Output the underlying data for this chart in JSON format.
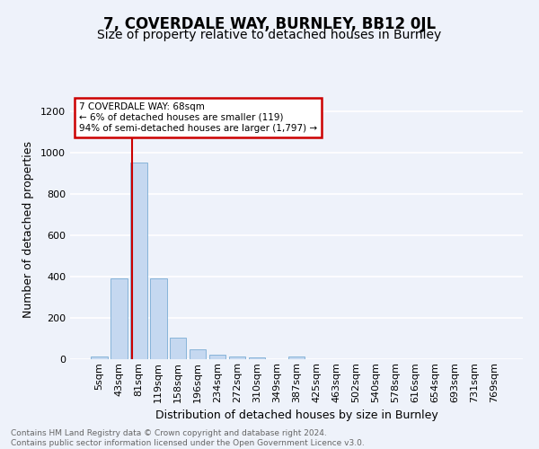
{
  "title": "7, COVERDALE WAY, BURNLEY, BB12 0JL",
  "subtitle": "Size of property relative to detached houses in Burnley",
  "xlabel": "Distribution of detached houses by size in Burnley",
  "ylabel": "Number of detached properties",
  "categories": [
    "5sqm",
    "43sqm",
    "81sqm",
    "119sqm",
    "158sqm",
    "196sqm",
    "234sqm",
    "272sqm",
    "310sqm",
    "349sqm",
    "387sqm",
    "425sqm",
    "463sqm",
    "502sqm",
    "540sqm",
    "578sqm",
    "616sqm",
    "654sqm",
    "693sqm",
    "731sqm",
    "769sqm"
  ],
  "values": [
    12,
    390,
    950,
    390,
    105,
    48,
    20,
    13,
    10,
    0,
    13,
    0,
    0,
    0,
    0,
    0,
    0,
    0,
    0,
    0,
    0
  ],
  "bar_color": "#c5d8f0",
  "bar_edge_color": "#7aadd4",
  "vline_x": 1.68,
  "vline_color": "#cc0000",
  "annotation_text": "7 COVERDALE WAY: 68sqm\n← 6% of detached houses are smaller (119)\n94% of semi-detached houses are larger (1,797) →",
  "annotation_box_color": "#ffffff",
  "annotation_box_edge": "#cc0000",
  "footer_text": "Contains HM Land Registry data © Crown copyright and database right 2024.\nContains public sector information licensed under the Open Government Licence v3.0.",
  "ylim": [
    0,
    1260
  ],
  "background_color": "#eef2fa",
  "grid_color": "#ffffff",
  "title_fontsize": 12,
  "subtitle_fontsize": 10,
  "axis_label_fontsize": 9,
  "tick_fontsize": 8,
  "footer_fontsize": 6.5
}
